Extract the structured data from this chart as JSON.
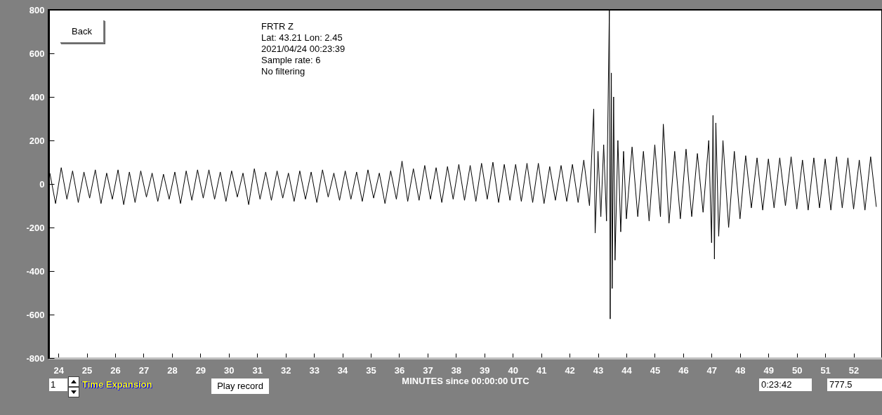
{
  "chart_data": {
    "type": "line",
    "xlabel": "MINUTES since 00:00:00 UTC",
    "annotations": [
      "FRTR  Z",
      "Lat: 43.21 Lon: 2.45",
      "2021/04/24 00:23:39",
      "Sample rate: 6",
      "No filtering",
      "Back",
      "1",
      "Time Expansion",
      "Play record",
      "0:23:42",
      "777.5"
    ],
    "xlim": [
      23.65,
      53.0
    ],
    "xticks": [
      24,
      25,
      26,
      27,
      28,
      29,
      30,
      31,
      32,
      33,
      34,
      35,
      36,
      37,
      38,
      39,
      40,
      41,
      42,
      43,
      44,
      45,
      46,
      47,
      48,
      49,
      50,
      51,
      52
    ],
    "ylim": [
      -800,
      800
    ],
    "yticks": [
      -800,
      -600,
      -400,
      -200,
      0,
      200,
      400,
      600,
      800
    ],
    "grid": false,
    "marker": "none",
    "line_style": "solid",
    "series": [
      {
        "color": "#000000",
        "x": [
          23.7,
          23.9,
          24.1,
          24.3,
          24.5,
          24.7,
          24.9,
          25.1,
          25.3,
          25.5,
          25.7,
          25.9,
          26.1,
          26.3,
          26.5,
          26.7,
          26.9,
          27.1,
          27.3,
          27.5,
          27.7,
          27.9,
          28.1,
          28.3,
          28.5,
          28.7,
          28.9,
          29.1,
          29.3,
          29.5,
          29.7,
          29.9,
          30.1,
          30.3,
          30.5,
          30.7,
          30.9,
          31.1,
          31.3,
          31.5,
          31.7,
          31.9,
          32.1,
          32.3,
          32.5,
          32.7,
          32.9,
          33.1,
          33.3,
          33.5,
          33.7,
          33.9,
          34.1,
          34.3,
          34.5,
          34.7,
          34.9,
          35.1,
          35.3,
          35.5,
          35.7,
          35.9,
          36.1,
          36.3,
          36.5,
          36.7,
          36.9,
          37.1,
          37.3,
          37.5,
          37.7,
          37.9,
          38.1,
          38.3,
          38.5,
          38.7,
          38.9,
          39.1,
          39.3,
          39.5,
          39.7,
          39.9,
          40.1,
          40.3,
          40.5,
          40.7,
          40.9,
          41.1,
          41.3,
          41.5,
          41.7,
          41.9,
          42.1,
          42.3,
          42.5,
          42.7,
          42.85,
          42.9,
          43.0,
          43.1,
          43.2,
          43.3,
          43.4,
          43.43,
          43.47,
          43.5,
          43.55,
          43.6,
          43.7,
          43.8,
          43.9,
          44.0,
          44.2,
          44.4,
          44.6,
          44.8,
          45.0,
          45.2,
          45.3,
          45.5,
          45.7,
          45.9,
          46.1,
          46.3,
          46.5,
          46.7,
          46.9,
          47.0,
          47.05,
          47.1,
          47.15,
          47.25,
          47.4,
          47.6,
          47.8,
          48.0,
          48.2,
          48.4,
          48.6,
          48.8,
          49.0,
          49.2,
          49.4,
          49.6,
          49.8,
          50.0,
          50.2,
          50.4,
          50.6,
          50.8,
          51.0,
          51.2,
          51.4,
          51.6,
          51.8,
          52.0,
          52.2,
          52.4,
          52.6,
          52.8
        ],
        "values": [
          50,
          -90,
          75,
          -70,
          60,
          -85,
          55,
          -65,
          65,
          -90,
          50,
          -70,
          65,
          -95,
          55,
          -85,
          60,
          -60,
          50,
          -80,
          45,
          -70,
          55,
          -90,
          60,
          -75,
          65,
          -65,
          65,
          -70,
          55,
          -80,
          60,
          -60,
          50,
          -95,
          70,
          -70,
          55,
          -75,
          60,
          -65,
          50,
          -80,
          60,
          -70,
          55,
          -85,
          65,
          -60,
          50,
          -75,
          60,
          -70,
          55,
          -80,
          65,
          -65,
          50,
          -90,
          60,
          -70,
          105,
          -80,
          70,
          -75,
          85,
          -70,
          75,
          -85,
          80,
          -70,
          90,
          -75,
          85,
          -80,
          95,
          -70,
          100,
          -85,
          90,
          -75,
          90,
          -80,
          95,
          -85,
          95,
          -90,
          80,
          -75,
          85,
          -80,
          90,
          -85,
          110,
          -100,
          345,
          -225,
          150,
          -150,
          180,
          -170,
          800,
          -620,
          510,
          -480,
          400,
          -350,
          200,
          -220,
          150,
          -160,
          170,
          -150,
          150,
          -170,
          180,
          -150,
          275,
          -180,
          150,
          -160,
          160,
          -150,
          140,
          -130,
          200,
          -270,
          315,
          -345,
          280,
          -240,
          200,
          -200,
          150,
          -160,
          130,
          -110,
          120,
          -120,
          115,
          -110,
          120,
          -100,
          125,
          -115,
          110,
          -120,
          120,
          -110,
          115,
          -120,
          125,
          -110,
          120,
          -115,
          110,
          -120,
          125,
          -105
        ]
      }
    ]
  }
}
